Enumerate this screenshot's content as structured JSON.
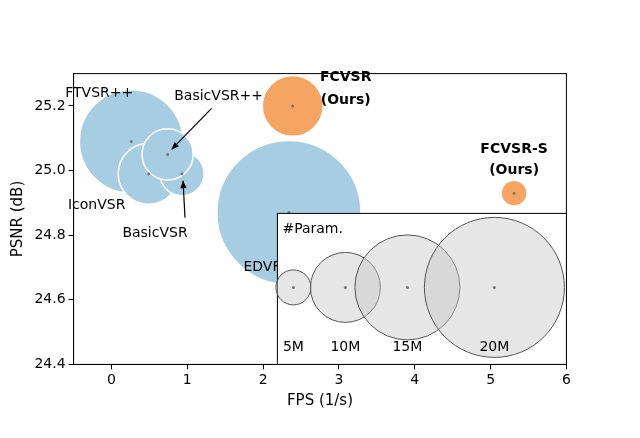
{
  "chart_data": {
    "type": "bubble",
    "x_label": "FPS (1/s)",
    "y_label": "PSNR (dB)",
    "xlim": [
      -0.5,
      6
    ],
    "xticks": [
      0,
      1,
      2,
      3,
      4,
      5,
      6
    ],
    "ylim": [
      24.4,
      25.3
    ],
    "yticks": [
      24.4,
      24.6,
      24.8,
      {
        "value": 25,
        "label": "25.0"
      },
      25.2
    ],
    "grid": false,
    "points": [
      {
        "label": [
          "FTVSR++"
        ],
        "x": 0.26,
        "y": 25.09,
        "params": 14.8,
        "color": "#a6cde2"
      },
      {
        "label": [
          "IconVSR"
        ],
        "x": 0.49,
        "y": 24.99,
        "params": 8.7,
        "color": "#a6cde2"
      },
      {
        "label": [
          "BasicVSR"
        ],
        "x": 0.93,
        "y": 24.99,
        "params": 6.3,
        "color": "#a6cde2"
      },
      {
        "label": [
          "BasicVSR++"
        ],
        "x": 0.74,
        "y": 25.05,
        "params": 7.3,
        "color": "#a6cde2"
      },
      {
        "label": [
          "EDVR-L"
        ],
        "x": 2.34,
        "y": 24.87,
        "params": 20.6,
        "color": "#a6cde2"
      },
      {
        "label": [
          "FCVSR",
          "(Ours)"
        ],
        "x": 2.39,
        "y": 25.2,
        "params": 8.7,
        "color": "#f6a462"
      },
      {
        "label": [
          "FCVSR-S",
          "(Ours)"
        ],
        "x": 5.31,
        "y": 24.93,
        "params": 3.7,
        "color": "#f6a462"
      }
    ],
    "size_legend": {
      "title": "#Param.",
      "values": [
        5,
        10,
        15,
        20
      ],
      "labels": [
        "5M",
        "10M",
        "15M",
        "20M"
      ]
    }
  }
}
